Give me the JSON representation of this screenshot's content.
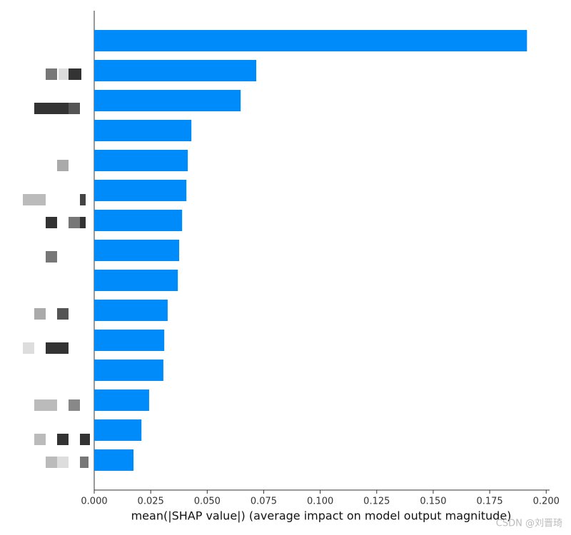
{
  "chart_data": {
    "type": "barh",
    "categories": [
      null,
      null,
      null,
      null,
      null,
      null,
      null,
      null,
      null,
      null,
      null,
      null,
      null,
      null,
      null
    ],
    "values": [
      0.1915,
      0.0717,
      0.0648,
      0.043,
      0.0414,
      0.0408,
      0.0389,
      0.0376,
      0.037,
      0.0325,
      0.031,
      0.0306,
      0.0243,
      0.0209,
      0.0174
    ],
    "color": "#008bfb",
    "xlabel": "mean(|SHAP value|) (average impact on model output magnitude)",
    "xlim": [
      0,
      0.2015
    ],
    "xticks": [
      {
        "value": 0,
        "label": "0.000"
      },
      {
        "value": 0.025,
        "label": "0.025"
      },
      {
        "value": 0.05,
        "label": "0.050"
      },
      {
        "value": 0.075,
        "label": "0.075"
      },
      {
        "value": 0.1,
        "label": "0.100"
      },
      {
        "value": 0.125,
        "label": "0.125"
      },
      {
        "value": 0.15,
        "label": "0.150"
      },
      {
        "value": 0.175,
        "label": "0.175"
      },
      {
        "value": 0.2,
        "label": "0.200"
      }
    ],
    "watermark": "CSDN @刘晋琦"
  }
}
